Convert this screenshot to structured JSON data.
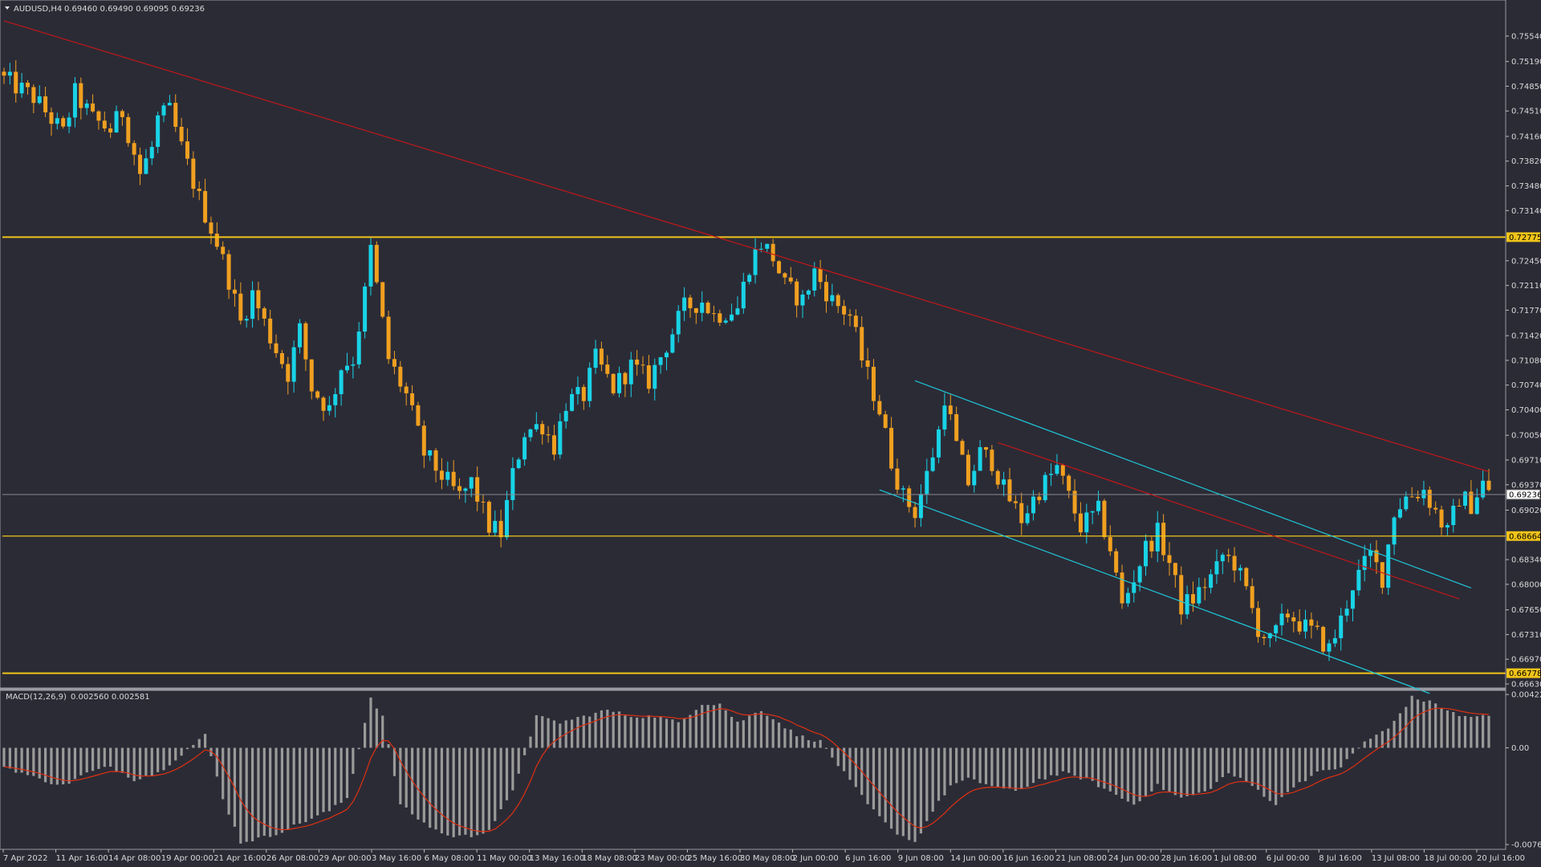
{
  "symbol_header": {
    "label": "AUDUSD,H4",
    "ohlc": "0.69460 0.69490 0.69095 0.69236"
  },
  "macd_header": {
    "label": "MACD(12,26,9)",
    "values": "0.002560 0.002581"
  },
  "colors": {
    "background": "#2b2b36",
    "bull": "#19d3e6",
    "bear": "#f0a020",
    "level_line": "#f0c419",
    "trend_line": "#c01818",
    "channel_line": "#1ec8d8",
    "macd_hist": "#9a9a9a",
    "macd_signal": "#e03010"
  },
  "chart_data": [
    {
      "type": "candlestick",
      "title": "AUDUSD,H4",
      "y_ticks": [
        "0.75540",
        "0.75190",
        "0.74850",
        "0.74510",
        "0.74160",
        "0.73820",
        "0.73480",
        "0.73140",
        "0.72450",
        "0.72110",
        "0.71770",
        "0.71420",
        "0.71080",
        "0.70740",
        "0.70400",
        "0.70050",
        "0.69710",
        "0.69370",
        "0.69020",
        "0.68340",
        "0.68000",
        "0.67650",
        "0.67310",
        "0.66970",
        "0.66630"
      ],
      "ylim": [
        0.6663,
        0.7576
      ],
      "x_ticks": [
        "7 Apr 2022",
        "11 Apr 16:00",
        "14 Apr 08:00",
        "19 Apr 00:00",
        "21 Apr 16:00",
        "26 Apr 08:00",
        "29 Apr 00:00",
        "3 May 16:00",
        "6 May 08:00",
        "11 May 00:00",
        "13 May 16:00",
        "18 May 08:00",
        "23 May 00:00",
        "25 May 16:00",
        "30 May 08:00",
        "2 Jun 00:00",
        "6 Jun 16:00",
        "9 Jun 08:00",
        "14 Jun 00:00",
        "16 Jun 16:00",
        "21 Jun 08:00",
        "24 Jun 00:00",
        "28 Jun 16:00",
        "1 Jul 08:00",
        "6 Jul 00:00",
        "8 Jul 16:00",
        "13 Jul 08:00",
        "18 Jul 00:00",
        "20 Jul 16:00"
      ],
      "horizontal_levels": [
        {
          "label": "0.72775",
          "value": 0.72775
        },
        {
          "label": "0.68664",
          "value": 0.68664
        },
        {
          "label": "0.66778",
          "value": 0.66778
        }
      ],
      "current_price": {
        "label": "0.69236",
        "value": 0.69236
      },
      "close_path": [
        [
          0,
          0.7495
        ],
        [
          5,
          0.747
        ],
        [
          10,
          0.742
        ],
        [
          12,
          0.7475
        ],
        [
          15,
          0.744
        ],
        [
          18,
          0.7425
        ],
        [
          20,
          0.745
        ],
        [
          23,
          0.7365
        ],
        [
          25,
          0.74
        ],
        [
          26,
          0.744
        ],
        [
          28,
          0.745
        ],
        [
          30,
          0.74
        ],
        [
          33,
          0.733
        ],
        [
          36,
          0.727
        ],
        [
          38,
          0.722
        ],
        [
          40,
          0.716
        ],
        [
          42,
          0.72
        ],
        [
          45,
          0.714
        ],
        [
          48,
          0.709
        ],
        [
          50,
          0.715
        ],
        [
          52,
          0.707
        ],
        [
          55,
          0.704
        ],
        [
          57,
          0.71
        ],
        [
          59,
          0.711
        ],
        [
          61,
          0.72
        ],
        [
          62,
          0.726
        ],
        [
          65,
          0.711
        ],
        [
          68,
          0.706
        ],
        [
          71,
          0.698
        ],
        [
          74,
          0.695
        ],
        [
          77,
          0.692
        ],
        [
          79,
          0.694
        ],
        [
          82,
          0.688
        ],
        [
          84,
          0.687
        ],
        [
          86,
          0.695
        ],
        [
          88,
          0.701
        ],
        [
          91,
          0.702
        ],
        [
          93,
          0.699
        ],
        [
          95,
          0.705
        ],
        [
          98,
          0.706
        ],
        [
          100,
          0.711
        ],
        [
          103,
          0.707
        ],
        [
          106,
          0.71
        ],
        [
          109,
          0.708
        ],
        [
          112,
          0.713
        ],
        [
          115,
          0.718
        ],
        [
          118,
          0.719
        ],
        [
          120,
          0.717
        ],
        [
          124,
          0.718
        ],
        [
          126,
          0.724
        ],
        [
          128,
          0.727
        ],
        [
          130,
          0.725
        ],
        [
          132,
          0.721
        ],
        [
          135,
          0.719
        ],
        [
          137,
          0.723
        ],
        [
          140,
          0.719
        ],
        [
          143,
          0.717
        ],
        [
          145,
          0.711
        ],
        [
          148,
          0.704
        ],
        [
          150,
          0.697
        ],
        [
          152,
          0.692
        ],
        [
          154,
          0.69
        ],
        [
          156,
          0.695
        ],
        [
          158,
          0.701
        ],
        [
          159,
          0.706
        ],
        [
          161,
          0.699
        ],
        [
          163,
          0.694
        ],
        [
          165,
          0.698
        ],
        [
          167,
          0.697
        ],
        [
          169,
          0.693
        ],
        [
          172,
          0.689
        ],
        [
          175,
          0.693
        ],
        [
          178,
          0.696
        ],
        [
          180,
          0.692
        ],
        [
          182,
          0.688
        ],
        [
          185,
          0.69
        ],
        [
          187,
          0.685
        ],
        [
          189,
          0.677
        ],
        [
          191,
          0.681
        ],
        [
          193,
          0.685
        ],
        [
          195,
          0.687
        ],
        [
          197,
          0.683
        ],
        [
          199,
          0.677
        ],
        [
          201,
          0.678
        ],
        [
          203,
          0.68
        ],
        [
          205,
          0.682
        ],
        [
          206,
          0.684
        ],
        [
          208,
          0.683
        ],
        [
          210,
          0.679
        ],
        [
          212,
          0.674
        ],
        [
          214,
          0.672
        ],
        [
          217,
          0.676
        ],
        [
          220,
          0.674
        ],
        [
          222,
          0.673
        ],
        [
          224,
          0.671
        ],
        [
          226,
          0.675
        ],
        [
          228,
          0.68
        ],
        [
          231,
          0.684
        ],
        [
          233,
          0.681
        ],
        [
          235,
          0.69
        ],
        [
          237,
          0.692
        ],
        [
          240,
          0.693
        ],
        [
          242,
          0.69
        ],
        [
          244,
          0.687
        ],
        [
          246,
          0.692
        ],
        [
          248,
          0.691
        ],
        [
          250,
          0.694
        ],
        [
          251,
          0.6924
        ]
      ],
      "trend_lines": [
        {
          "name": "long-term resistance",
          "from": [
            0,
            0.7575
          ],
          "to": [
            251,
            0.6955
          ]
        },
        {
          "name": "channel midline",
          "from": [
            168,
            0.6995
          ],
          "to": [
            246,
            0.678
          ]
        }
      ],
      "channel": {
        "upper": {
          "from": [
            154,
            0.708
          ],
          "to": [
            248,
            0.6795
          ]
        },
        "lower": {
          "from": [
            148,
            0.693
          ],
          "to": [
            241,
            0.665
          ]
        }
      }
    },
    {
      "type": "macd",
      "title": "MACD(12,26,9)",
      "y_ticks": [
        "0.004228",
        "0.00",
        "-0.00767"
      ],
      "ylim": [
        -0.00767,
        0.0043
      ],
      "macd": 0.00256,
      "signal": 0.002581,
      "hist_path": [
        [
          0,
          -0.0015
        ],
        [
          6,
          -0.0025
        ],
        [
          10,
          -0.003
        ],
        [
          14,
          -0.002
        ],
        [
          18,
          -0.0015
        ],
        [
          22,
          -0.0025
        ],
        [
          26,
          -0.002
        ],
        [
          30,
          -0.0005
        ],
        [
          34,
          0.001
        ],
        [
          37,
          -0.004
        ],
        [
          40,
          -0.0075
        ],
        [
          45,
          -0.007
        ],
        [
          50,
          -0.006
        ],
        [
          55,
          -0.005
        ],
        [
          58,
          -0.004
        ],
        [
          62,
          0.004
        ],
        [
          64,
          0.0025
        ],
        [
          67,
          -0.0045
        ],
        [
          71,
          -0.006
        ],
        [
          75,
          -0.007
        ],
        [
          79,
          -0.007
        ],
        [
          82,
          -0.0065
        ],
        [
          86,
          -0.0035
        ],
        [
          90,
          0.0025
        ],
        [
          94,
          0.002
        ],
        [
          98,
          0.0025
        ],
        [
          102,
          0.003
        ],
        [
          106,
          0.0025
        ],
        [
          110,
          0.0025
        ],
        [
          114,
          0.002
        ],
        [
          118,
          0.0035
        ],
        [
          121,
          0.0035
        ],
        [
          124,
          0.002
        ],
        [
          128,
          0.003
        ],
        [
          131,
          0.002
        ],
        [
          134,
          0.001
        ],
        [
          138,
          0.0005
        ],
        [
          142,
          -0.002
        ],
        [
          146,
          -0.0045
        ],
        [
          150,
          -0.0065
        ],
        [
          154,
          -0.0075
        ],
        [
          157,
          -0.005
        ],
        [
          160,
          -0.003
        ],
        [
          163,
          -0.0025
        ],
        [
          167,
          -0.003
        ],
        [
          171,
          -0.0035
        ],
        [
          175,
          -0.0025
        ],
        [
          179,
          -0.002
        ],
        [
          183,
          -0.0025
        ],
        [
          187,
          -0.0035
        ],
        [
          191,
          -0.0045
        ],
        [
          195,
          -0.003
        ],
        [
          199,
          -0.004
        ],
        [
          203,
          -0.0035
        ],
        [
          207,
          -0.002
        ],
        [
          211,
          -0.003
        ],
        [
          215,
          -0.0045
        ],
        [
          218,
          -0.003
        ],
        [
          222,
          -0.002
        ],
        [
          226,
          -0.0015
        ],
        [
          230,
          0.0005
        ],
        [
          234,
          0.0015
        ],
        [
          238,
          0.004
        ],
        [
          242,
          0.0035
        ],
        [
          246,
          0.0025
        ],
        [
          251,
          0.0025
        ]
      ]
    }
  ]
}
